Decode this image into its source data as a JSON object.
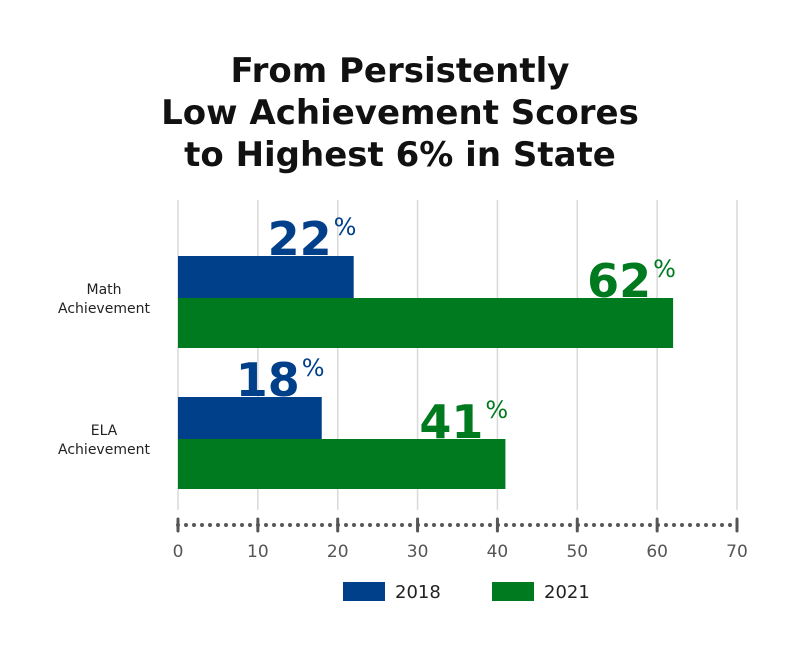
{
  "chart_data": {
    "type": "bar",
    "orientation": "horizontal",
    "title": "From Persistently Low Achievement Scores to Highest 6% in State",
    "title_lines": [
      "From Persistently",
      "Low Achievement Scores",
      "to Highest 6% in State"
    ],
    "categories": [
      "Math Achievement",
      "ELA Achievement"
    ],
    "category_lines": [
      [
        "Math",
        "Achievement"
      ],
      [
        "ELA",
        "Achievement"
      ]
    ],
    "series": [
      {
        "name": "2018",
        "values": [
          22,
          18
        ],
        "color": "#003f8a"
      },
      {
        "name": "2021",
        "values": [
          62,
          41
        ],
        "color": "#007a1f"
      }
    ],
    "value_suffix": "%",
    "xlim": [
      0,
      70
    ],
    "xticks": [
      0,
      10,
      20,
      30,
      40,
      50,
      60,
      70
    ],
    "grid": true,
    "legend_position": "bottom-center"
  }
}
